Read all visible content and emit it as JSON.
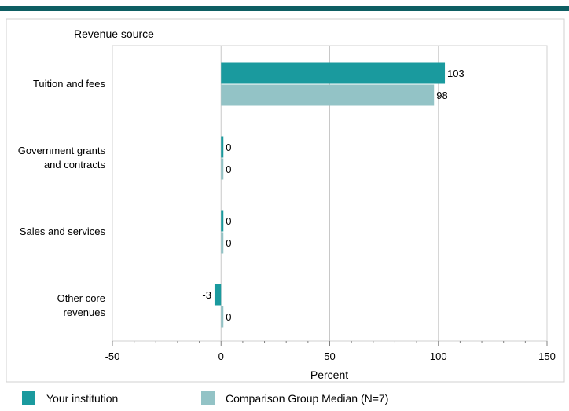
{
  "chart_data": {
    "type": "bar",
    "orientation": "horizontal",
    "ylabel": "Revenue source",
    "xlabel": "Percent",
    "xlim": [
      -50,
      150
    ],
    "xticks": [
      -50,
      0,
      50,
      100,
      150
    ],
    "categories": [
      [
        "Tuition and fees"
      ],
      [
        "Government grants",
        "and contracts"
      ],
      [
        "Sales and services"
      ],
      [
        "Other core",
        "revenues"
      ]
    ],
    "series": [
      {
        "name": "Your institution",
        "color": "#1a9a9e",
        "values": [
          103,
          0,
          0,
          -3
        ],
        "labels": [
          "103",
          "0",
          "0",
          "-3"
        ]
      },
      {
        "name": "Comparison Group Median (N=7)",
        "color": "#93c3c6",
        "values": [
          98,
          0,
          0,
          0
        ],
        "labels": [
          "98",
          "0",
          "0",
          "0"
        ]
      }
    ],
    "grid": true,
    "legend_position": "bottom",
    "colors": {
      "top_bar": "#0e5e63",
      "grid": "#c8c8c8",
      "frame": "#d0d0d0"
    }
  }
}
